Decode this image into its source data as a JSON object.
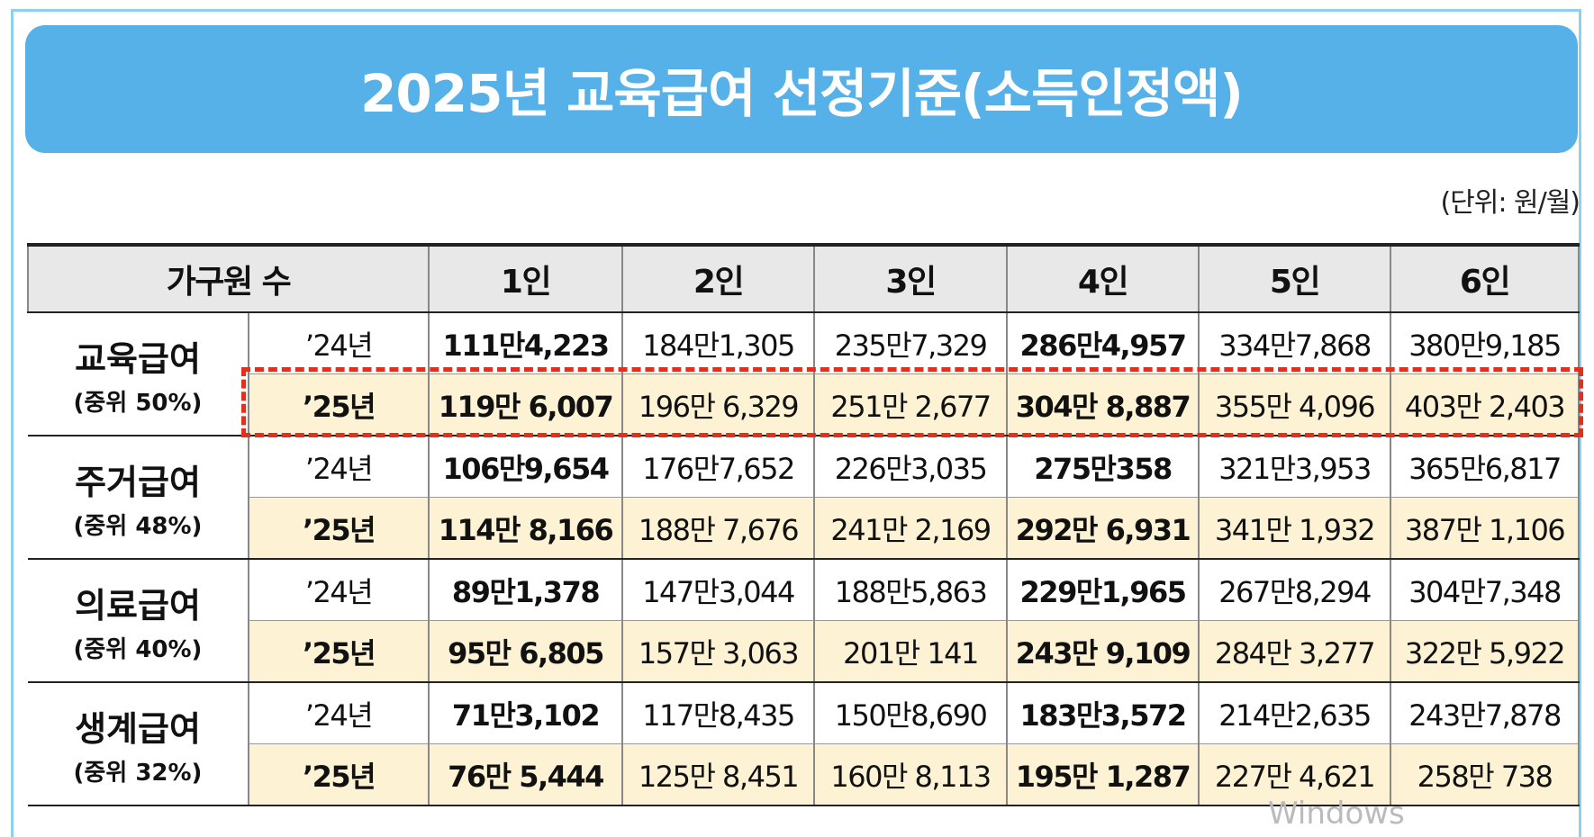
{
  "header": {
    "title": "2025년 교육급여 선정기준(소득인정액)",
    "unit": "(단위: 원/월)"
  },
  "table": {
    "columns": [
      "가구원 수",
      "1인",
      "2인",
      "3인",
      "4인",
      "5인",
      "6인"
    ],
    "groups": [
      {
        "name": "교육급여",
        "basis": "(중위 50%)",
        "rows": [
          {
            "year": "’24년",
            "cells": [
              "111만4,223",
              "184만1,305",
              "235만7,329",
              "286만4,957",
              "334만7,868",
              "380만9,185"
            ]
          },
          {
            "year": "’25년",
            "cells": [
              "119만 6,007",
              "196만 6,329",
              "251만 2,677",
              "304만 8,887",
              "355만 4,096",
              "403만 2,403"
            ]
          }
        ]
      },
      {
        "name": "주거급여",
        "basis": "(중위 48%)",
        "rows": [
          {
            "year": "’24년",
            "cells": [
              "106만9,654",
              "176만7,652",
              "226만3,035",
              "275만358",
              "321만3,953",
              "365만6,817"
            ]
          },
          {
            "year": "’25년",
            "cells": [
              "114만 8,166",
              "188만 7,676",
              "241만 2,169",
              "292만 6,931",
              "341만 1,932",
              "387만 1,106"
            ]
          }
        ]
      },
      {
        "name": "의료급여",
        "basis": "(중위 40%)",
        "rows": [
          {
            "year": "’24년",
            "cells": [
              "89만1,378",
              "147만3,044",
              "188만5,863",
              "229만1,965",
              "267만8,294",
              "304만7,348"
            ]
          },
          {
            "year": "’25년",
            "cells": [
              "95만 6,805",
              "157만 3,063",
              "201만 141",
              "243만 9,109",
              "284만 3,277",
              "322만 5,922"
            ]
          }
        ]
      },
      {
        "name": "생계급여",
        "basis": "(중위 32%)",
        "rows": [
          {
            "year": "’24년",
            "cells": [
              "71만3,102",
              "117만8,435",
              "150만8,690",
              "183만3,572",
              "214만2,635",
              "243만7,878"
            ]
          },
          {
            "year": "’25년",
            "cells": [
              "76만 5,444",
              "125만 8,451",
              "160만 8,113",
              "195만 1,287",
              "227만 4,621",
              "258만 738"
            ]
          }
        ]
      }
    ]
  },
  "watermark": "Windows"
}
